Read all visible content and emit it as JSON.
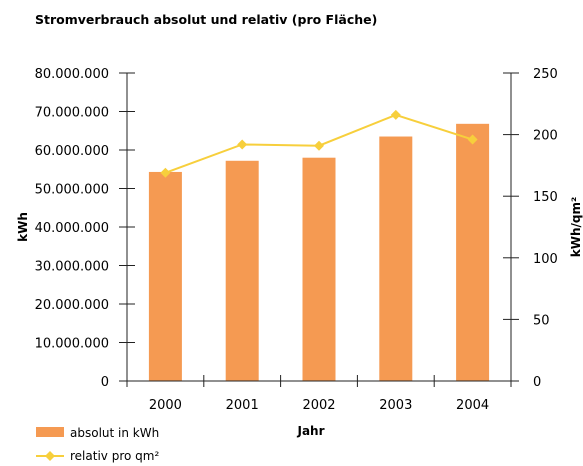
{
  "chart_data": {
    "type": "bar",
    "title": "Stromverbrauch absolut und relativ (pro Fläche)",
    "xlabel": "Jahr",
    "ylabel": "kWh",
    "y2label": "kWh/qm²",
    "categories": [
      "2000",
      "2001",
      "2002",
      "2003",
      "2004"
    ],
    "ylim": [
      0,
      80000000
    ],
    "y2lim": [
      0,
      250
    ],
    "yticks": [
      0,
      10000000,
      20000000,
      30000000,
      40000000,
      50000000,
      60000000,
      70000000,
      80000000
    ],
    "yticklabels": [
      "0",
      "10.000.000",
      "20.000.000",
      "30.000.000",
      "40.000.000",
      "50.000.000",
      "60.000.000",
      "70.000.000",
      "80.000.000"
    ],
    "y2ticks": [
      0,
      50,
      100,
      150,
      200,
      250
    ],
    "y2ticklabels": [
      "0",
      "50",
      "100",
      "150",
      "200",
      "250"
    ],
    "grid": false,
    "legend_position": "bottom-left",
    "series": [
      {
        "name": "absolut in kWh",
        "type": "bar",
        "axis": "left",
        "color": "#f59a52",
        "values": [
          54300000,
          57200000,
          58000000,
          63500000,
          66800000
        ]
      },
      {
        "name": "relativ pro qm²",
        "type": "line",
        "axis": "right",
        "color": "#f7cf3c",
        "values": [
          169,
          192,
          191,
          216,
          196
        ]
      }
    ]
  }
}
